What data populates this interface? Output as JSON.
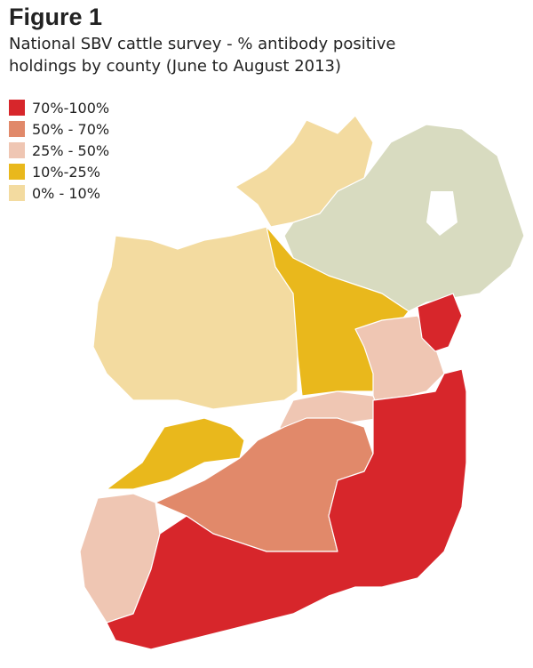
{
  "figure": {
    "label": "Figure 1",
    "title_lines": [
      "National SBV cattle survey - % antibody positive",
      "holdings by county (June to August 2013)"
    ]
  },
  "legend": {
    "items": [
      {
        "label": "70%-100%",
        "color": "#d7262b"
      },
      {
        "label": "50% - 70%",
        "color": "#e1896a"
      },
      {
        "label": "25% - 50%",
        "color": "#efc6b3"
      },
      {
        "label": "10%-25%",
        "color": "#e9b81c"
      },
      {
        "label": "0% - 10%",
        "color": "#f3dba0"
      }
    ]
  }
}
